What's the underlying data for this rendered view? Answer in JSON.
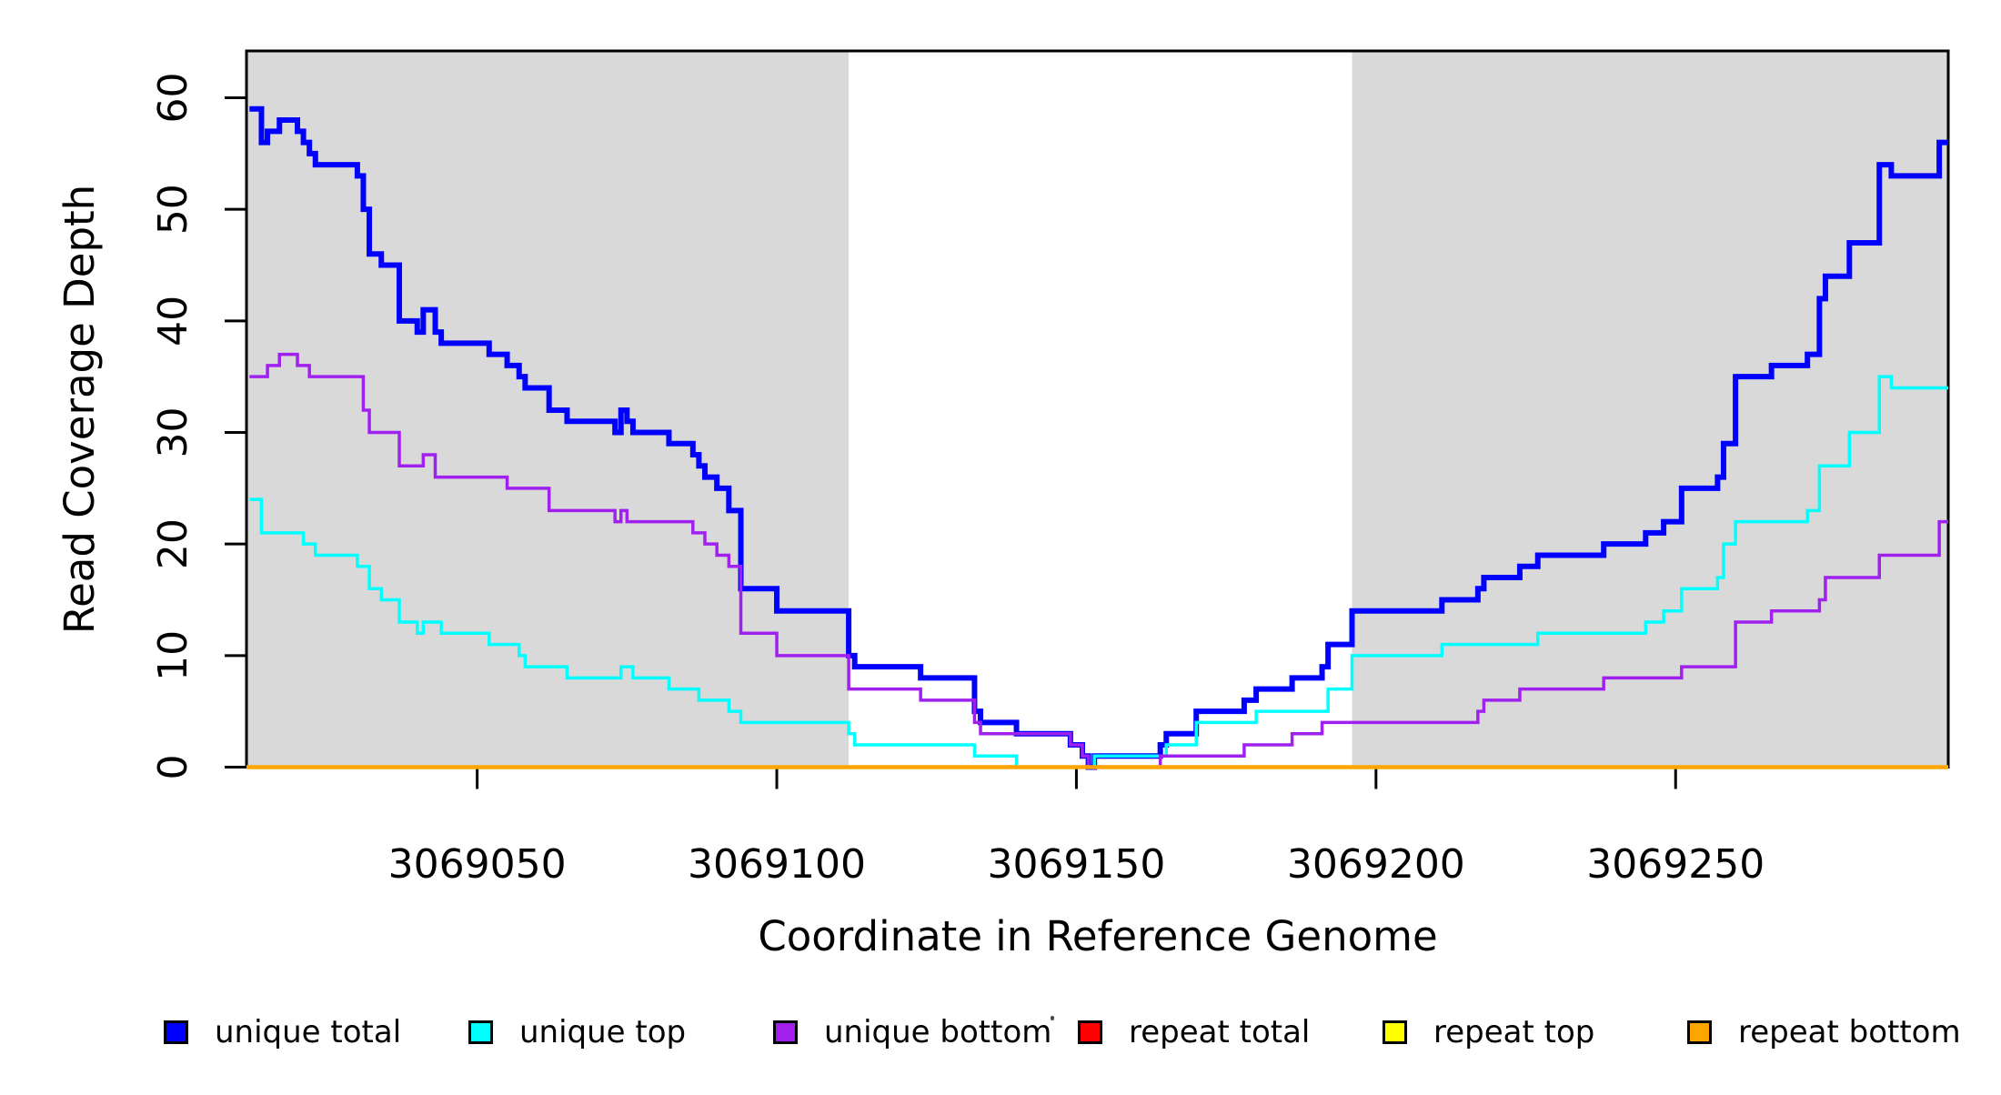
{
  "chart_data": {
    "type": "line",
    "subtype": "step-after",
    "title": "",
    "xlabel": "Coordinate in Reference Genome",
    "ylabel": "Read Coverage Depth",
    "xlim": [
      3069011.5,
      3069295.5
    ],
    "ylim": [
      0,
      64.2
    ],
    "grid": false,
    "x_ticks": {
      "values": [
        3069050,
        3069100,
        3069150,
        3069200,
        3069250
      ],
      "labels": [
        "3069050",
        "3069100",
        "3069150",
        "3069200",
        "3069250"
      ]
    },
    "y_ticks": {
      "values": [
        0,
        10,
        20,
        30,
        40,
        50,
        60
      ],
      "labels": [
        "0",
        "10",
        "20",
        "30",
        "40",
        "50",
        "60"
      ]
    },
    "shaded_regions": [
      {
        "x0": 3069011.5,
        "x1": 3069112,
        "color": "#D9D9D9"
      },
      {
        "x0": 3069196,
        "x1": 3069295.5,
        "color": "#D9D9D9"
      }
    ],
    "series": [
      {
        "name": "unique-total",
        "label": "unique total",
        "color": "#0000FF",
        "width": 6,
        "points": [
          [
            3069012,
            59
          ],
          [
            3069014,
            56
          ],
          [
            3069015,
            57
          ],
          [
            3069017,
            58
          ],
          [
            3069020,
            57
          ],
          [
            3069021,
            56
          ],
          [
            3069022,
            55
          ],
          [
            3069023,
            54
          ],
          [
            3069030,
            53
          ],
          [
            3069031,
            50
          ],
          [
            3069032,
            46
          ],
          [
            3069034,
            45
          ],
          [
            3069037,
            40
          ],
          [
            3069040,
            39
          ],
          [
            3069041,
            41
          ],
          [
            3069043,
            39
          ],
          [
            3069044,
            38
          ],
          [
            3069052,
            37
          ],
          [
            3069055,
            36
          ],
          [
            3069057,
            35
          ],
          [
            3069058,
            34
          ],
          [
            3069062,
            32
          ],
          [
            3069065,
            31
          ],
          [
            3069073,
            30
          ],
          [
            3069074,
            32
          ],
          [
            3069075,
            31
          ],
          [
            3069076,
            30
          ],
          [
            3069082,
            29
          ],
          [
            3069086,
            28
          ],
          [
            3069087,
            27
          ],
          [
            3069088,
            26
          ],
          [
            3069090,
            25
          ],
          [
            3069092,
            23
          ],
          [
            3069094,
            16
          ],
          [
            3069100,
            14
          ],
          [
            3069112,
            10
          ],
          [
            3069113,
            9
          ],
          [
            3069124,
            8
          ],
          [
            3069133,
            5
          ],
          [
            3069134,
            4
          ],
          [
            3069140,
            3
          ],
          [
            3069149,
            2
          ],
          [
            3069151,
            1
          ],
          [
            3069152,
            0
          ],
          [
            3069153,
            1
          ],
          [
            3069164,
            2
          ],
          [
            3069165,
            3
          ],
          [
            3069170,
            5
          ],
          [
            3069178,
            6
          ],
          [
            3069180,
            7
          ],
          [
            3069186,
            8
          ],
          [
            3069191,
            9
          ],
          [
            3069192,
            11
          ],
          [
            3069196,
            14
          ],
          [
            3069211,
            15
          ],
          [
            3069217,
            16
          ],
          [
            3069218,
            17
          ],
          [
            3069224,
            18
          ],
          [
            3069227,
            19
          ],
          [
            3069238,
            20
          ],
          [
            3069245,
            21
          ],
          [
            3069248,
            22
          ],
          [
            3069251,
            25
          ],
          [
            3069257,
            26
          ],
          [
            3069258,
            29
          ],
          [
            3069260,
            35
          ],
          [
            3069266,
            36
          ],
          [
            3069272,
            37
          ],
          [
            3069274,
            42
          ],
          [
            3069275,
            44
          ],
          [
            3069279,
            47
          ],
          [
            3069284,
            54
          ],
          [
            3069286,
            53
          ],
          [
            3069294,
            56
          ]
        ]
      },
      {
        "name": "unique-top",
        "label": "unique top",
        "color": "#00FFFF",
        "width": 3.5,
        "points": [
          [
            3069012,
            24
          ],
          [
            3069014,
            21
          ],
          [
            3069021,
            20
          ],
          [
            3069023,
            19
          ],
          [
            3069030,
            18
          ],
          [
            3069032,
            16
          ],
          [
            3069034,
            15
          ],
          [
            3069037,
            13
          ],
          [
            3069040,
            12
          ],
          [
            3069041,
            13
          ],
          [
            3069044,
            12
          ],
          [
            3069052,
            11
          ],
          [
            3069057,
            10
          ],
          [
            3069058,
            9
          ],
          [
            3069065,
            8
          ],
          [
            3069074,
            9
          ],
          [
            3069076,
            8
          ],
          [
            3069082,
            7
          ],
          [
            3069087,
            6
          ],
          [
            3069092,
            5
          ],
          [
            3069094,
            4
          ],
          [
            3069112,
            3
          ],
          [
            3069113,
            2
          ],
          [
            3069133,
            1
          ],
          [
            3069140,
            0
          ],
          [
            3069153,
            1
          ],
          [
            3069165,
            2
          ],
          [
            3069170,
            4
          ],
          [
            3069180,
            5
          ],
          [
            3069192,
            7
          ],
          [
            3069196,
            10
          ],
          [
            3069211,
            11
          ],
          [
            3069227,
            12
          ],
          [
            3069245,
            13
          ],
          [
            3069248,
            14
          ],
          [
            3069251,
            16
          ],
          [
            3069257,
            17
          ],
          [
            3069258,
            20
          ],
          [
            3069260,
            22
          ],
          [
            3069272,
            23
          ],
          [
            3069274,
            27
          ],
          [
            3069279,
            30
          ],
          [
            3069284,
            35
          ],
          [
            3069286,
            34
          ]
        ]
      },
      {
        "name": "unique-bottom",
        "label": "unique bottom",
        "color": "#A020F0",
        "width": 3.5,
        "points": [
          [
            3069012,
            35
          ],
          [
            3069015,
            36
          ],
          [
            3069017,
            37
          ],
          [
            3069020,
            36
          ],
          [
            3069022,
            35
          ],
          [
            3069031,
            32
          ],
          [
            3069032,
            30
          ],
          [
            3069037,
            27
          ],
          [
            3069041,
            28
          ],
          [
            3069043,
            26
          ],
          [
            3069055,
            25
          ],
          [
            3069062,
            23
          ],
          [
            3069073,
            22
          ],
          [
            3069074,
            23
          ],
          [
            3069075,
            22
          ],
          [
            3069086,
            21
          ],
          [
            3069088,
            20
          ],
          [
            3069090,
            19
          ],
          [
            3069092,
            18
          ],
          [
            3069094,
            12
          ],
          [
            3069100,
            10
          ],
          [
            3069112,
            7
          ],
          [
            3069124,
            6
          ],
          [
            3069133,
            4
          ],
          [
            3069134,
            3
          ],
          [
            3069149,
            2
          ],
          [
            3069151,
            1
          ],
          [
            3069152,
            0
          ],
          [
            3069164,
            1
          ],
          [
            3069178,
            2
          ],
          [
            3069186,
            3
          ],
          [
            3069191,
            4
          ],
          [
            3069217,
            5
          ],
          [
            3069218,
            6
          ],
          [
            3069224,
            7
          ],
          [
            3069238,
            8
          ],
          [
            3069251,
            9
          ],
          [
            3069260,
            13
          ],
          [
            3069266,
            14
          ],
          [
            3069274,
            15
          ],
          [
            3069275,
            17
          ],
          [
            3069284,
            19
          ],
          [
            3069294,
            22
          ]
        ]
      },
      {
        "name": "repeat-total",
        "label": "repeat total",
        "color": "#FF0000",
        "width": 3,
        "points": [
          [
            3069011.5,
            0
          ]
        ]
      },
      {
        "name": "repeat-top",
        "label": "repeat top",
        "color": "#FFFF00",
        "width": 3,
        "points": [
          [
            3069011.5,
            0
          ]
        ]
      },
      {
        "name": "repeat-bottom",
        "label": "repeat bottom",
        "color": "#FFA500",
        "width": 4.5,
        "points": [
          [
            3069011.5,
            0
          ]
        ]
      }
    ]
  },
  "legend": {
    "entries": [
      {
        "label": "unique total",
        "color": "#0000FF"
      },
      {
        "label": "unique top",
        "color": "#00FFFF"
      },
      {
        "label": "unique bottom",
        "color": "#A020F0"
      },
      {
        "label": "repeat total",
        "color": "#FF0000"
      },
      {
        "label": "repeat top",
        "color": "#FFFF00"
      },
      {
        "label": "repeat bottom",
        "color": "#FFA500"
      }
    ]
  }
}
